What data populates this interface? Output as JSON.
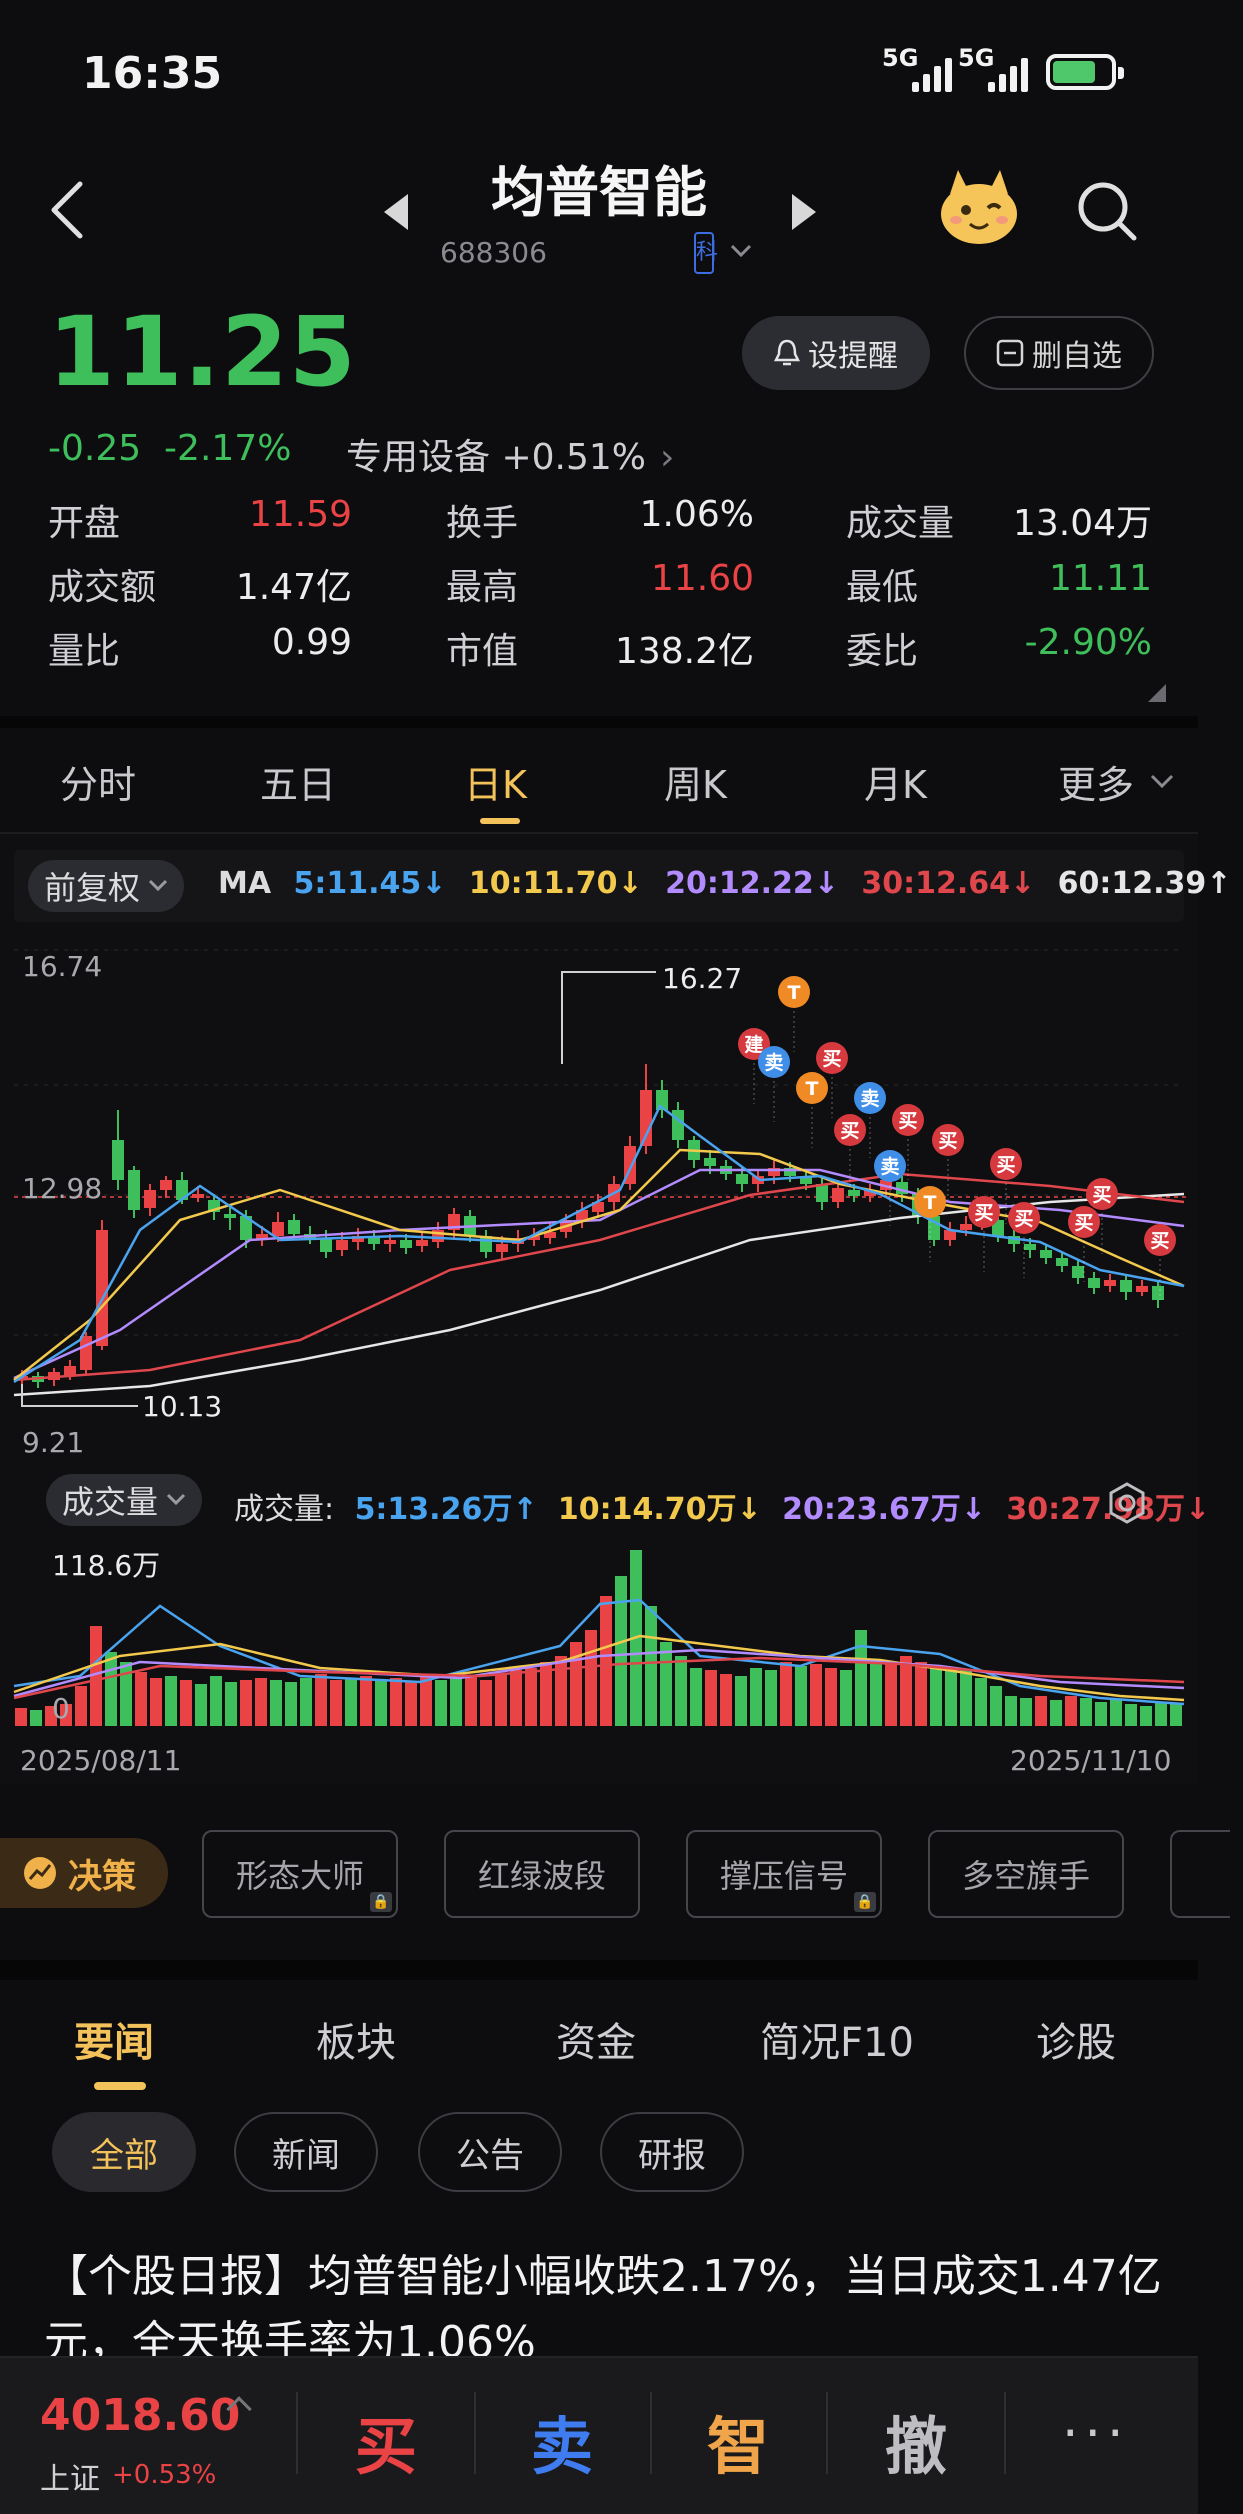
{
  "status": {
    "time": "16:35",
    "net1": "5G",
    "net2": "5G"
  },
  "header": {
    "title": "均普智能",
    "code": "688306",
    "badge": "科"
  },
  "quote": {
    "price": "11.25",
    "change": "-0.25",
    "change_pct": "-2.17%",
    "sector": "专用设备 +0.51%",
    "alert_label": "设提醒",
    "watch_label": "删自选",
    "fields": [
      {
        "label": "开盘",
        "value": "11.59"
      },
      {
        "label": "换手",
        "value": "1.06%"
      },
      {
        "label": "成交量",
        "value": "13.04万"
      },
      {
        "label": "成交额",
        "value": "1.47亿"
      },
      {
        "label": "最高",
        "value": "11.60"
      },
      {
        "label": "最低",
        "value": "11.11"
      },
      {
        "label": "量比",
        "value": "0.99"
      },
      {
        "label": "市值",
        "value": "138.2亿"
      },
      {
        "label": "委比",
        "value": "-2.90%"
      }
    ]
  },
  "periods": [
    "分时",
    "五日",
    "日K",
    "周K",
    "月K",
    "更多"
  ],
  "chart": {
    "adjust_label": "前复权",
    "ma_prefix": "MA",
    "ma": [
      {
        "label": "5:11.45↓",
        "color": "#4aa3ee"
      },
      {
        "label": "10:11.70↓",
        "color": "#f2c94c"
      },
      {
        "label": "20:12.22↓",
        "color": "#b28cff"
      },
      {
        "label": "30:12.64↓",
        "color": "#e0474c"
      },
      {
        "label": "60:12.39↑",
        "color": "#e6e6e6"
      }
    ],
    "y_top": "16.74",
    "y_mid": "12.98",
    "y_bottom": "9.21",
    "high_mark": "16.27",
    "low_mark": "10.13",
    "vol_dropdown": "成交量",
    "vol_prefix": "成交量:",
    "vol_ma": [
      {
        "label": "5:13.26万↑",
        "color": "#4aa3ee"
      },
      {
        "label": "10:14.70万↓",
        "color": "#f2c94c"
      },
      {
        "label": "20:23.67万↓",
        "color": "#b28cff"
      },
      {
        "label": "30:27.98万↓",
        "color": "#e0474c"
      }
    ],
    "vol_top": "118.6万",
    "vol_zero": "0",
    "date_start": "2025/08/11",
    "date_end": "2025/11/10",
    "signals": [
      {
        "text": "T",
        "kind": "t"
      },
      {
        "text": "建",
        "kind": "buy"
      },
      {
        "text": "卖",
        "kind": "sell"
      },
      {
        "text": "买",
        "kind": "buy"
      },
      {
        "text": "T",
        "kind": "t"
      },
      {
        "text": "卖",
        "kind": "sell"
      },
      {
        "text": "买",
        "kind": "buy"
      },
      {
        "text": "买",
        "kind": "buy"
      },
      {
        "text": "买",
        "kind": "buy"
      },
      {
        "text": "卖",
        "kind": "sell"
      },
      {
        "text": "买",
        "kind": "buy"
      },
      {
        "text": "T",
        "kind": "t"
      },
      {
        "text": "买",
        "kind": "buy"
      },
      {
        "text": "买",
        "kind": "buy"
      },
      {
        "text": "买",
        "kind": "buy"
      },
      {
        "text": "买",
        "kind": "buy"
      },
      {
        "text": "买",
        "kind": "buy"
      }
    ]
  },
  "strategy": {
    "main": "决策",
    "chips": [
      "形态大师",
      "红绿波段",
      "撑压信号",
      "多空旗手"
    ]
  },
  "news": {
    "tabs": [
      "要闻",
      "板块",
      "资金",
      "简况F10",
      "诊股"
    ],
    "filters": [
      "全部",
      "新闻",
      "公告",
      "研报"
    ],
    "headline": "【个股日报】均普智能小幅收跌2.17%，当日成交1.47亿元，全天换手率为1.06%"
  },
  "bottom": {
    "index_value": "4018.60",
    "index_name": "上证",
    "index_change": "+0.53%",
    "buy": "买",
    "sell": "卖",
    "smart": "智",
    "cancel": "撤",
    "more": "···"
  },
  "colors": {
    "up": "#e94345",
    "down": "#3fbf5c",
    "accent": "#f4c25b"
  }
}
